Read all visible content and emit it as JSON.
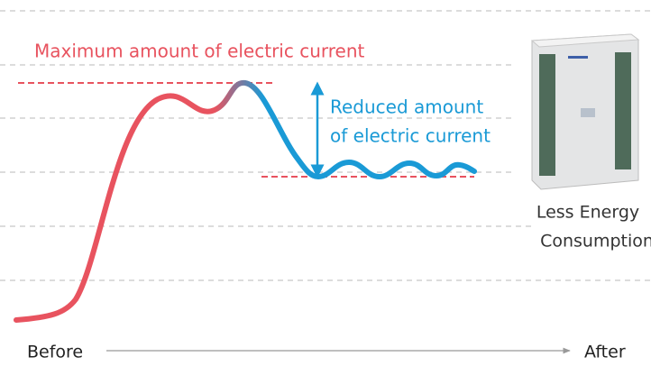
{
  "max_label": "Maximum amount of electric current",
  "reduced_label": {
    "lines": [
      "Reduced amount",
      "of electric current"
    ]
  },
  "product_label": {
    "lines": [
      "Less Energy",
      "Consumption"
    ]
  },
  "axis": {
    "start": "Before",
    "end": "After"
  }
}
